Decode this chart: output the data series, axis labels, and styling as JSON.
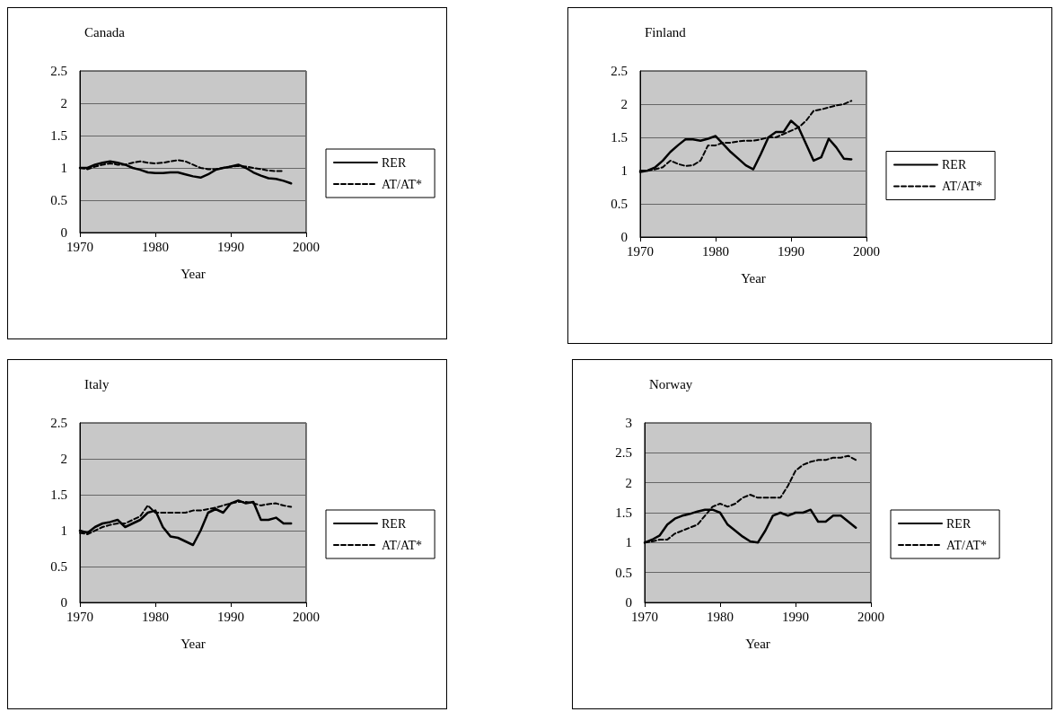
{
  "chart_data": [
    {
      "type": "line",
      "title": "Canada",
      "xlabel": "Year",
      "x": [
        1970,
        1971,
        1972,
        1973,
        1974,
        1975,
        1976,
        1977,
        1978,
        1979,
        1980,
        1981,
        1982,
        1983,
        1984,
        1985,
        1986,
        1987,
        1988,
        1989,
        1990,
        1991,
        1992,
        1993,
        1994,
        1995,
        1996,
        1997,
        1998
      ],
      "xlim": [
        1970,
        2000
      ],
      "xticks": [
        1970,
        1980,
        1990,
        2000
      ],
      "ylim": [
        0,
        2.5
      ],
      "yticks": [
        0,
        0.5,
        1,
        1.5,
        2,
        2.5
      ],
      "grid": "y",
      "legend": "right",
      "series": [
        {
          "name": "RER",
          "color": "#000000",
          "line_style": "solid",
          "values": [
            1.0,
            1.0,
            1.05,
            1.08,
            1.1,
            1.08,
            1.05,
            1.0,
            0.97,
            0.93,
            0.92,
            0.92,
            0.93,
            0.93,
            0.9,
            0.87,
            0.85,
            0.9,
            0.97,
            1.0,
            1.02,
            1.05,
            1.0,
            0.93,
            0.88,
            0.84,
            0.83,
            0.8,
            0.76
          ]
        },
        {
          "name": "AT/AT*",
          "color": "#000000",
          "line_style": "dashed",
          "values": [
            1.0,
            0.98,
            1.02,
            1.05,
            1.07,
            1.05,
            1.05,
            1.08,
            1.1,
            1.08,
            1.07,
            1.08,
            1.1,
            1.12,
            1.1,
            1.05,
            1.0,
            0.98,
            0.98,
            1.0,
            1.02,
            1.03,
            1.02,
            1.0,
            0.98,
            0.96,
            0.95,
            0.95,
            null
          ]
        }
      ]
    },
    {
      "type": "line",
      "title": "Finland",
      "xlabel": "Year",
      "x": [
        1970,
        1971,
        1972,
        1973,
        1974,
        1975,
        1976,
        1977,
        1978,
        1979,
        1980,
        1981,
        1982,
        1983,
        1984,
        1985,
        1986,
        1987,
        1988,
        1989,
        1990,
        1991,
        1992,
        1993,
        1994,
        1995,
        1996,
        1997,
        1998
      ],
      "xlim": [
        1970,
        2000
      ],
      "xticks": [
        1970,
        1980,
        1990,
        2000
      ],
      "ylim": [
        0,
        2.5
      ],
      "yticks": [
        0,
        0.5,
        1,
        1.5,
        2,
        2.5
      ],
      "grid": "y",
      "legend": "right",
      "series": [
        {
          "name": "RER",
          "color": "#000000",
          "line_style": "solid",
          "values": [
            0.98,
            1.0,
            1.05,
            1.15,
            1.28,
            1.38,
            1.47,
            1.47,
            1.45,
            1.48,
            1.52,
            1.4,
            1.28,
            1.18,
            1.08,
            1.02,
            1.25,
            1.5,
            1.58,
            1.58,
            1.75,
            1.65,
            1.4,
            1.15,
            1.2,
            1.48,
            1.35,
            1.18,
            1.17
          ]
        },
        {
          "name": "AT/AT*",
          "color": "#000000",
          "line_style": "dashed",
          "values": [
            1.0,
            1.0,
            1.02,
            1.05,
            1.15,
            1.1,
            1.07,
            1.08,
            1.15,
            1.38,
            1.38,
            1.42,
            1.42,
            1.44,
            1.45,
            1.45,
            1.47,
            1.5,
            1.5,
            1.55,
            1.6,
            1.65,
            1.75,
            1.9,
            1.92,
            1.95,
            1.98,
            2.0,
            2.05
          ]
        }
      ]
    },
    {
      "type": "line",
      "title": "Italy",
      "xlabel": "Year",
      "x": [
        1970,
        1971,
        1972,
        1973,
        1974,
        1975,
        1976,
        1977,
        1978,
        1979,
        1980,
        1981,
        1982,
        1983,
        1984,
        1985,
        1986,
        1987,
        1988,
        1989,
        1990,
        1991,
        1992,
        1993,
        1994,
        1995,
        1996,
        1997,
        1998
      ],
      "xlim": [
        1970,
        2000
      ],
      "xticks": [
        1970,
        1980,
        1990,
        2000
      ],
      "ylim": [
        0,
        2.5
      ],
      "yticks": [
        0,
        0.5,
        1,
        1.5,
        2,
        2.5
      ],
      "grid": "y",
      "legend": "right",
      "series": [
        {
          "name": "RER",
          "color": "#000000",
          "line_style": "solid",
          "values": [
            1.0,
            0.97,
            1.05,
            1.1,
            1.12,
            1.15,
            1.05,
            1.1,
            1.15,
            1.25,
            1.28,
            1.05,
            0.92,
            0.9,
            0.85,
            0.8,
            1.0,
            1.25,
            1.3,
            1.25,
            1.38,
            1.42,
            1.38,
            1.4,
            1.15,
            1.15,
            1.18,
            1.1,
            1.1
          ]
        },
        {
          "name": "AT/AT*",
          "color": "#000000",
          "line_style": "dashed",
          "values": [
            0.97,
            0.95,
            1.0,
            1.05,
            1.08,
            1.1,
            1.1,
            1.15,
            1.2,
            1.35,
            1.25,
            1.25,
            1.25,
            1.25,
            1.25,
            1.28,
            1.28,
            1.3,
            1.32,
            1.35,
            1.38,
            1.4,
            1.4,
            1.38,
            1.35,
            1.37,
            1.38,
            1.35,
            1.33
          ]
        }
      ]
    },
    {
      "type": "line",
      "title": "Norway",
      "xlabel": "Year",
      "x": [
        1970,
        1971,
        1972,
        1973,
        1974,
        1975,
        1976,
        1977,
        1978,
        1979,
        1980,
        1981,
        1982,
        1983,
        1984,
        1985,
        1986,
        1987,
        1988,
        1989,
        1990,
        1991,
        1992,
        1993,
        1994,
        1995,
        1996,
        1997,
        1998
      ],
      "xlim": [
        1970,
        2000
      ],
      "xticks": [
        1970,
        1980,
        1990,
        2000
      ],
      "ylim": [
        0,
        3
      ],
      "yticks": [
        0,
        0.5,
        1,
        1.5,
        2,
        2.5,
        3
      ],
      "grid": "y",
      "legend": "right",
      "series": [
        {
          "name": "RER",
          "color": "#000000",
          "line_style": "solid",
          "values": [
            1.0,
            1.05,
            1.12,
            1.3,
            1.4,
            1.45,
            1.48,
            1.52,
            1.55,
            1.55,
            1.5,
            1.3,
            1.2,
            1.1,
            1.02,
            1.0,
            1.2,
            1.45,
            1.5,
            1.45,
            1.5,
            1.5,
            1.55,
            1.35,
            1.35,
            1.45,
            1.45,
            1.35,
            1.25
          ]
        },
        {
          "name": "AT/AT*",
          "color": "#000000",
          "line_style": "dashed",
          "values": [
            1.0,
            1.02,
            1.05,
            1.05,
            1.15,
            1.2,
            1.25,
            1.3,
            1.45,
            1.6,
            1.65,
            1.6,
            1.65,
            1.75,
            1.8,
            1.75,
            1.75,
            1.75,
            1.75,
            1.95,
            2.2,
            2.3,
            2.35,
            2.38,
            2.38,
            2.42,
            2.42,
            2.45,
            2.38
          ]
        }
      ]
    }
  ]
}
